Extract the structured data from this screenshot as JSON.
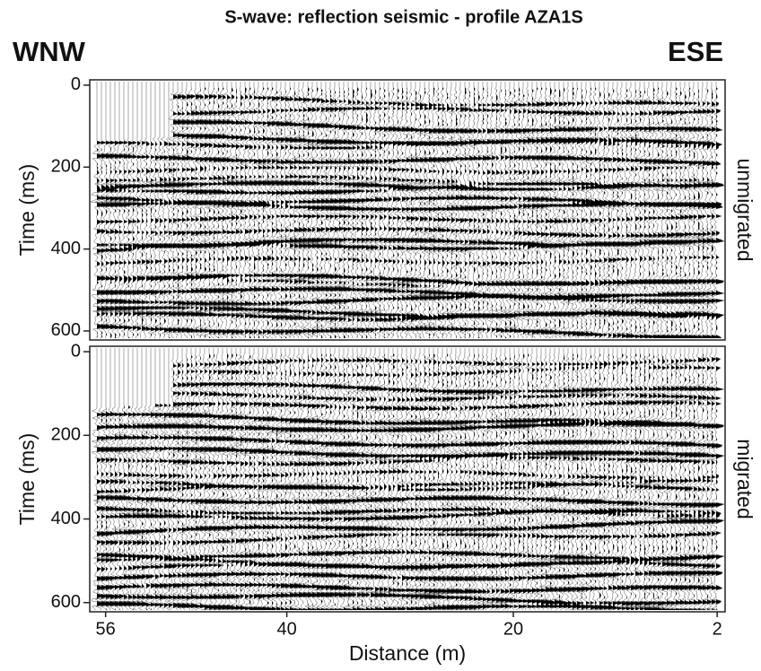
{
  "title": "S-wave: reflection seismic - profile AZA1S",
  "left_label": "WNW",
  "right_label": "ESE",
  "chart_data": [
    {
      "type": "seismic",
      "panel_label": "unmigrated",
      "ylabel": "Time (ms)",
      "ylim": [
        -13,
        622
      ],
      "yticks": [
        0,
        200,
        400,
        600
      ]
    },
    {
      "type": "seismic",
      "panel_label": "migrated",
      "ylabel": "Time (ms)",
      "xlabel": "Distance (m)",
      "ylim": [
        -13,
        622
      ],
      "yticks": [
        0,
        200,
        400,
        600
      ],
      "xlim": [
        57.4,
        1.3
      ],
      "xticks": [
        56,
        40,
        20,
        2
      ]
    }
  ]
}
